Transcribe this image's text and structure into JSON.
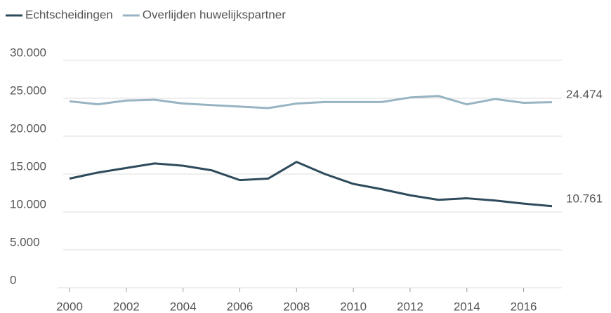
{
  "chart_data": {
    "type": "line",
    "x": [
      2000,
      2001,
      2002,
      2003,
      2004,
      2005,
      2006,
      2007,
      2008,
      2009,
      2010,
      2011,
      2012,
      2013,
      2014,
      2015,
      2016,
      2017
    ],
    "series": [
      {
        "name": "Echtscheidingen",
        "color": "#2e4b5c",
        "values": [
          14400,
          15200,
          15800,
          16400,
          16100,
          15500,
          14200,
          14400,
          16600,
          15000,
          13700,
          13000,
          12200,
          11600,
          11800,
          11500,
          11100,
          10761
        ],
        "value_labels": [
          null,
          null,
          null,
          null,
          null,
          null,
          null,
          null,
          null,
          null,
          null,
          null,
          null,
          null,
          null,
          null,
          null,
          "10.761"
        ]
      },
      {
        "name": "Overlijden huwelijkspartner",
        "color": "#98b4c3",
        "values": [
          24600,
          24200,
          24700,
          24800,
          24300,
          24100,
          23900,
          23700,
          24300,
          24500,
          24500,
          24500,
          25100,
          25300,
          24200,
          24900,
          24400,
          24474
        ],
        "value_labels": [
          null,
          null,
          null,
          null,
          null,
          null,
          null,
          null,
          null,
          null,
          null,
          null,
          null,
          null,
          null,
          null,
          null,
          "24.474"
        ]
      }
    ],
    "xlim": [
      2000,
      2017
    ],
    "xticks": [
      2000,
      2002,
      2004,
      2006,
      2008,
      2010,
      2012,
      2014,
      2016
    ],
    "ylim": [
      0,
      30000
    ],
    "yticks": [
      0,
      {
        "value": 5000,
        "label": "5.000"
      },
      {
        "value": 10000,
        "label": "10.000"
      },
      {
        "value": 15000,
        "label": "15.000"
      },
      {
        "value": 20000,
        "label": "20.000"
      },
      {
        "value": 25000,
        "label": "25.000"
      },
      {
        "value": 30000,
        "label": "30.000"
      }
    ],
    "grid": true,
    "legend": "top-left"
  }
}
